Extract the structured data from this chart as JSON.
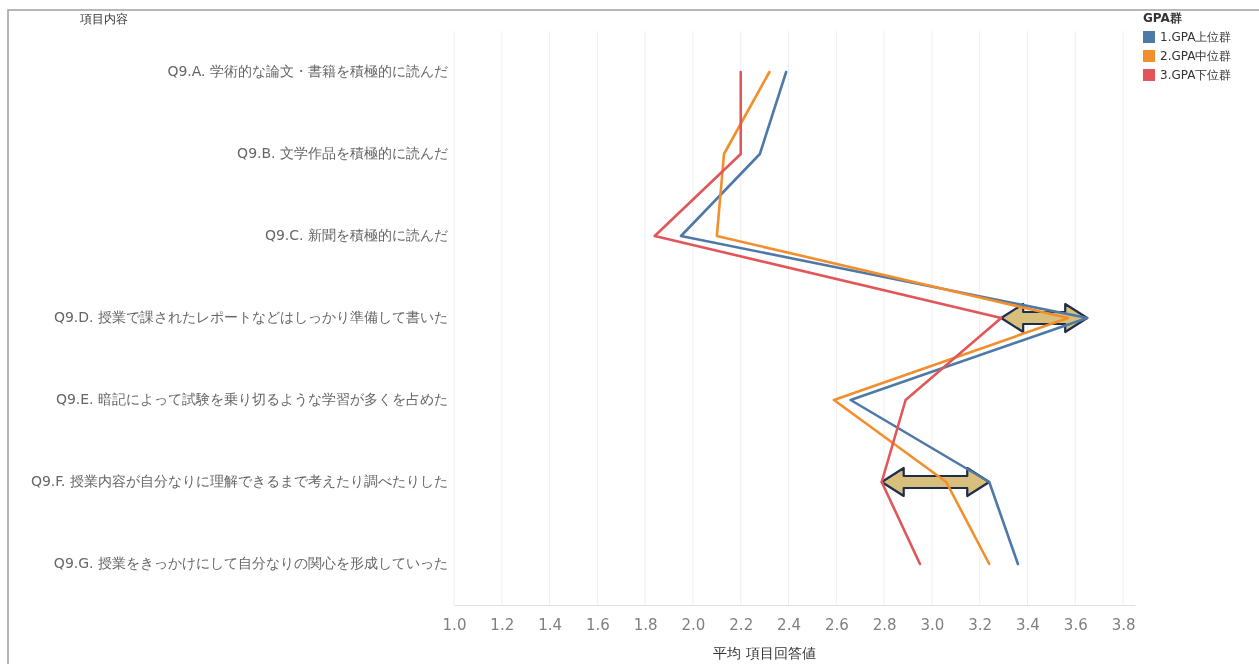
{
  "chart_data": {
    "type": "line",
    "ylabel": "項目内容",
    "xlabel": "平均 項目回答値",
    "legend_title": "GPA群",
    "categories": [
      "Q9.A. 学術的な論文・書籍を積極的に読んだ",
      "Q9.B. 文学作品を積極的に読んだ",
      "Q9.C. 新聞を積極的に読んだ",
      "Q9.D. 授業で課されたレポートなどはしっかり準備して書いた",
      "Q9.E. 暗記によって試験を乗り切るような学習が多くを占めた",
      "Q9.F. 授業内容が自分なりに理解できるまで考えたり調べたりした",
      "Q9.G. 授業をきっかけにして自分なりの関心を形成していった"
    ],
    "series": [
      {
        "name": "1.GPA上位群",
        "color": "#4e79a7",
        "values": [
          2.39,
          2.28,
          1.95,
          3.65,
          2.66,
          3.24,
          3.36
        ]
      },
      {
        "name": "2.GPA中位群",
        "color": "#f28e2b",
        "values": [
          2.32,
          2.13,
          2.1,
          3.57,
          2.59,
          3.06,
          3.24
        ]
      },
      {
        "name": "3.GPA下位群",
        "color": "#e15759",
        "values": [
          2.2,
          2.2,
          1.84,
          3.29,
          2.89,
          2.79,
          2.95
        ]
      }
    ],
    "xlim": [
      1.0,
      3.85
    ],
    "xticks": [
      {
        "value": 1,
        "label": "1.0"
      },
      1.2,
      1.4,
      1.6,
      1.8,
      {
        "value": 2,
        "label": "2.0"
      },
      2.2,
      2.4,
      2.6,
      2.8,
      {
        "value": 3,
        "label": "3.0"
      },
      3.2,
      3.4,
      3.6,
      3.8
    ],
    "orientation": "horizontal",
    "grid": "x",
    "legend": "top right",
    "marker": "none",
    "line_style": "solid"
  }
}
